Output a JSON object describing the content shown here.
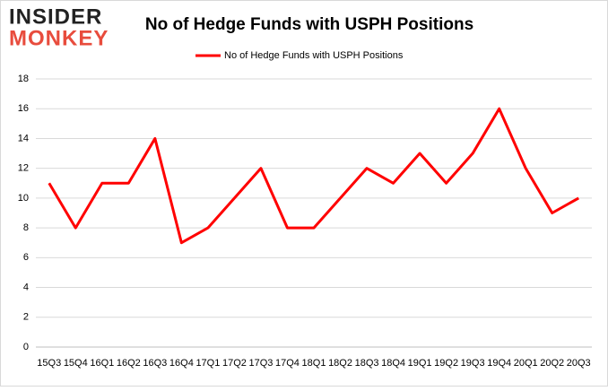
{
  "logo": {
    "top": "INSIDER",
    "bottom": "MONKEY"
  },
  "chart_data": {
    "type": "line",
    "title": "No of Hedge Funds with USPH Positions",
    "categories": [
      "15Q3",
      "15Q4",
      "16Q1",
      "16Q2",
      "16Q3",
      "16Q4",
      "17Q1",
      "17Q2",
      "17Q3",
      "17Q4",
      "18Q1",
      "18Q2",
      "18Q3",
      "18Q4",
      "19Q1",
      "19Q2",
      "19Q3",
      "19Q4",
      "20Q1",
      "20Q2",
      "20Q3"
    ],
    "series": [
      {
        "name": "No of Hedge Funds with USPH Positions",
        "color": "#ff0000",
        "values": [
          11,
          8,
          11,
          11,
          14,
          7,
          8,
          10,
          12,
          8,
          8,
          10,
          12,
          11,
          13,
          11,
          13,
          16,
          12,
          9,
          10
        ]
      }
    ],
    "ylim": [
      0,
      18
    ],
    "yticks": [
      0,
      2,
      4,
      6,
      8,
      10,
      12,
      14,
      16,
      18
    ],
    "grid": true,
    "legend": "top"
  }
}
